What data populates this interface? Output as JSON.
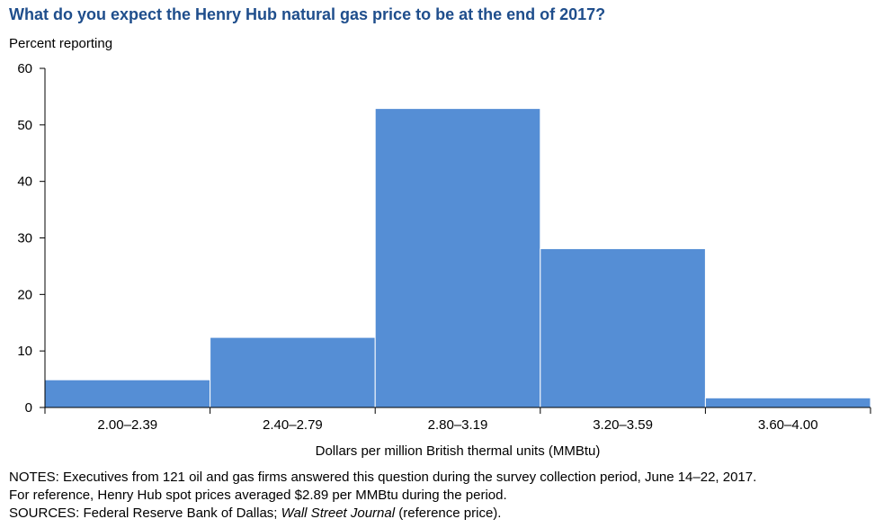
{
  "chart_data": {
    "type": "bar",
    "title": "What do you expect the Henry Hub natural gas price to be at the end of 2017?",
    "ylabel": "Percent reporting",
    "xlabel": "Dollars per million British thermal units (MMBtu)",
    "categories": [
      "2.00–2.39",
      "2.40–2.79",
      "2.80–3.19",
      "3.20–3.59",
      "3.60–4.00"
    ],
    "values": [
      4.9,
      12.4,
      52.9,
      28.1,
      1.7
    ],
    "ylim": [
      0,
      60
    ],
    "yticks": [
      0,
      10,
      20,
      30,
      40,
      50,
      60
    ],
    "bar_color": "#558ed5",
    "title_color": "#1f4e8c",
    "grid": false
  },
  "notes": {
    "line1": "NOTES: Executives from 121 oil and gas firms answered this question during the survey collection period, June 14–22, 2017.",
    "line2": "For reference, Henry Hub spot prices averaged $2.89 per MMBtu during the period.",
    "line3_prefix": "SOURCES: Federal Reserve Bank of Dallas; ",
    "line3_italic": "Wall Street Journal",
    "line3_suffix": " (reference price)."
  }
}
